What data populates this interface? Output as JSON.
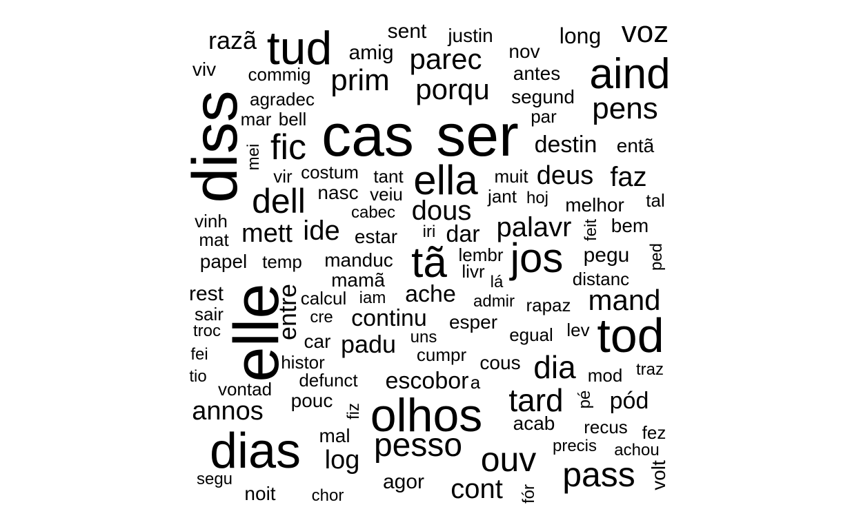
{
  "words": [
    {
      "text": "cas",
      "vertical": false
    },
    {
      "text": "ser",
      "vertical": false
    },
    {
      "text": "diss",
      "vertical": true
    },
    {
      "text": "elle",
      "vertical": true
    },
    {
      "text": "olhos",
      "vertical": false
    },
    {
      "text": "dias",
      "vertical": false
    },
    {
      "text": "tod",
      "vertical": false
    },
    {
      "text": "aind",
      "vertical": false
    },
    {
      "text": "tud",
      "vertical": false
    },
    {
      "text": "ella",
      "vertical": false
    },
    {
      "text": "tã",
      "vertical": false
    },
    {
      "text": "jos",
      "vertical": false
    },
    {
      "text": "pass",
      "vertical": false
    },
    {
      "text": "ouv",
      "vertical": false
    },
    {
      "text": "pesso",
      "vertical": false
    },
    {
      "text": "fic",
      "vertical": false
    },
    {
      "text": "dell",
      "vertical": false
    },
    {
      "text": "tard",
      "vertical": false
    },
    {
      "text": "voz",
      "vertical": false
    },
    {
      "text": "pens",
      "vertical": false
    },
    {
      "text": "mand",
      "vertical": false
    },
    {
      "text": "dia",
      "vertical": false
    },
    {
      "text": "prim",
      "vertical": false
    },
    {
      "text": "parec",
      "vertical": false
    },
    {
      "text": "porqu",
      "vertical": false
    },
    {
      "text": "dous",
      "vertical": false
    },
    {
      "text": "palavr",
      "vertical": false
    },
    {
      "text": "deus",
      "vertical": false
    },
    {
      "text": "faz",
      "vertical": false
    },
    {
      "text": "destin",
      "vertical": false
    },
    {
      "text": "ide",
      "vertical": false
    },
    {
      "text": "mett",
      "vertical": false
    },
    {
      "text": "annos",
      "vertical": false
    },
    {
      "text": "log",
      "vertical": false
    },
    {
      "text": "cont",
      "vertical": false
    },
    {
      "text": "razã",
      "vertical": false
    },
    {
      "text": "continu",
      "vertical": false
    },
    {
      "text": "escobor",
      "vertical": false
    },
    {
      "text": "ache",
      "vertical": false
    },
    {
      "text": "padu",
      "vertical": false
    },
    {
      "text": "pód",
      "vertical": false
    },
    {
      "text": "dar",
      "vertical": false
    },
    {
      "text": "entre",
      "vertical": true
    },
    {
      "text": "long",
      "vertical": false
    },
    {
      "text": "sent",
      "vertical": false
    },
    {
      "text": "amig",
      "vertical": false
    },
    {
      "text": "justin",
      "vertical": false
    },
    {
      "text": "nov",
      "vertical": false
    },
    {
      "text": "antes",
      "vertical": false
    },
    {
      "text": "segund",
      "vertical": false
    },
    {
      "text": "par",
      "vertical": false
    },
    {
      "text": "viv",
      "vertical": false
    },
    {
      "text": "commig",
      "vertical": false
    },
    {
      "text": "agradec",
      "vertical": false
    },
    {
      "text": "mar",
      "vertical": false
    },
    {
      "text": "bell",
      "vertical": false
    },
    {
      "text": "mei",
      "vertical": true
    },
    {
      "text": "entã",
      "vertical": false
    },
    {
      "text": "vir",
      "vertical": false
    },
    {
      "text": "costum",
      "vertical": false
    },
    {
      "text": "tant",
      "vertical": false
    },
    {
      "text": "muit",
      "vertical": false
    },
    {
      "text": "nasc",
      "vertical": false
    },
    {
      "text": "veiu",
      "vertical": false
    },
    {
      "text": "jant",
      "vertical": false
    },
    {
      "text": "hoj",
      "vertical": false
    },
    {
      "text": "melhor",
      "vertical": false
    },
    {
      "text": "tal",
      "vertical": false
    },
    {
      "text": "cabec",
      "vertical": false
    },
    {
      "text": "vinh",
      "vertical": false
    },
    {
      "text": "mat",
      "vertical": false
    },
    {
      "text": "estar",
      "vertical": false
    },
    {
      "text": "iri",
      "vertical": false
    },
    {
      "text": "bem",
      "vertical": false
    },
    {
      "text": "feit",
      "vertical": true
    },
    {
      "text": "papel",
      "vertical": false
    },
    {
      "text": "temp",
      "vertical": false
    },
    {
      "text": "manduc",
      "vertical": false
    },
    {
      "text": "lembr",
      "vertical": false
    },
    {
      "text": "pegu",
      "vertical": false
    },
    {
      "text": "ped",
      "vertical": true
    },
    {
      "text": "mamã",
      "vertical": false
    },
    {
      "text": "livr",
      "vertical": false
    },
    {
      "text": "lá",
      "vertical": false
    },
    {
      "text": "distanc",
      "vertical": false
    },
    {
      "text": "rest",
      "vertical": false
    },
    {
      "text": "calcul",
      "vertical": false
    },
    {
      "text": "iam",
      "vertical": false
    },
    {
      "text": "admir",
      "vertical": false
    },
    {
      "text": "rapaz",
      "vertical": false
    },
    {
      "text": "sair",
      "vertical": false
    },
    {
      "text": "cre",
      "vertical": false
    },
    {
      "text": "esper",
      "vertical": false
    },
    {
      "text": "troc",
      "vertical": false
    },
    {
      "text": "car",
      "vertical": false
    },
    {
      "text": "uns",
      "vertical": false
    },
    {
      "text": "egual",
      "vertical": false
    },
    {
      "text": "lev",
      "vertical": false
    },
    {
      "text": "fei",
      "vertical": false
    },
    {
      "text": "histor",
      "vertical": false
    },
    {
      "text": "cumpr",
      "vertical": false
    },
    {
      "text": "cous",
      "vertical": false
    },
    {
      "text": "traz",
      "vertical": false
    },
    {
      "text": "tio",
      "vertical": false
    },
    {
      "text": "defunct",
      "vertical": false
    },
    {
      "text": "mod",
      "vertical": false
    },
    {
      "text": "vontad",
      "vertical": false
    },
    {
      "text": "a",
      "vertical": false
    },
    {
      "text": "pé",
      "vertical": true
    },
    {
      "text": "pouc",
      "vertical": false
    },
    {
      "text": "fiz",
      "vertical": true
    },
    {
      "text": "acab",
      "vertical": false
    },
    {
      "text": "recus",
      "vertical": false
    },
    {
      "text": "mal",
      "vertical": false
    },
    {
      "text": "fez",
      "vertical": false
    },
    {
      "text": "precis",
      "vertical": false
    },
    {
      "text": "achou",
      "vertical": false
    },
    {
      "text": "segu",
      "vertical": false
    },
    {
      "text": "agor",
      "vertical": false
    },
    {
      "text": "volt",
      "vertical": true
    },
    {
      "text": "noit",
      "vertical": false
    },
    {
      "text": "chor",
      "vertical": false
    },
    {
      "text": "fór",
      "vertical": true
    }
  ]
}
